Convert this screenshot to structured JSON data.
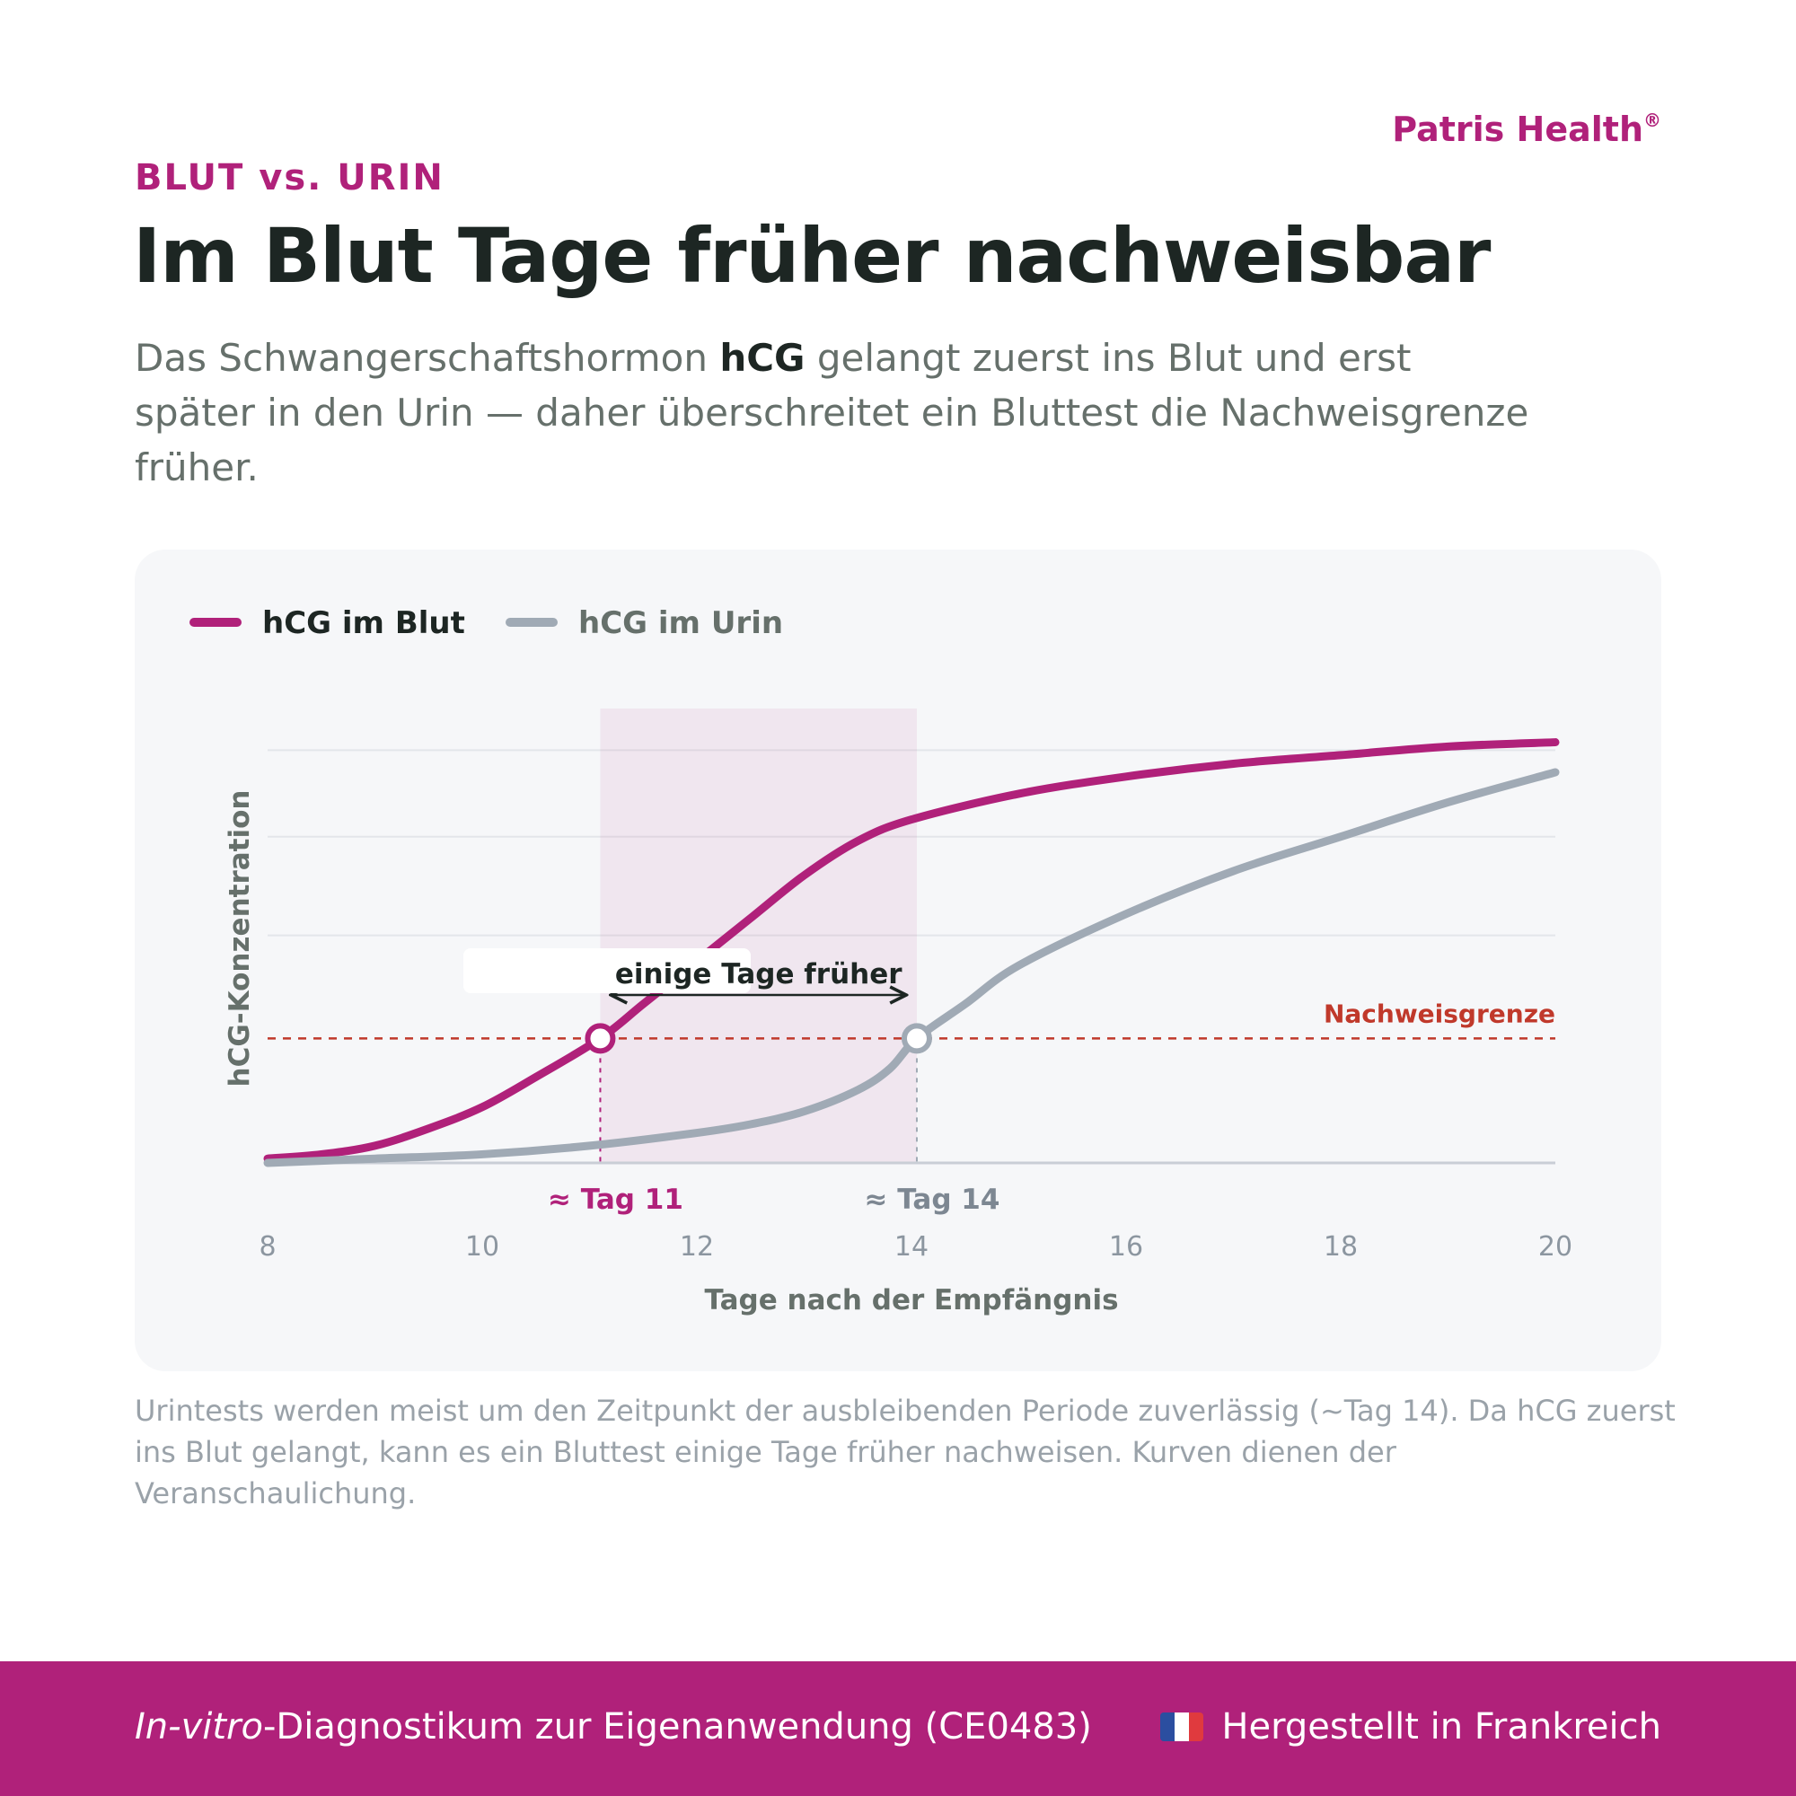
{
  "header": {
    "brand": "Patris Health",
    "brand_mark": "®",
    "eyebrow": "BLUT vs. URIN",
    "title": "Im Blut Tage früher nachweisbar",
    "lead": {
      "before": "Das Schwangerschaftshormon ",
      "bold": "hCG",
      "after": " gelangt zuerst ins Blut und erst später in den Urin — daher überschreitet ein Bluttest die Nachweisgrenze früher."
    }
  },
  "colors": {
    "accent": "#b0217a",
    "urine": "#a0aab5",
    "threshold": "#c0392b",
    "text_dark": "#1d2623",
    "text_muted": "#66706b",
    "tick": "#8c96a0",
    "card_bg": "#f6f7f9"
  },
  "chart_data": {
    "type": "line",
    "title": "",
    "xlabel": "Tage nach der Empfängnis",
    "ylabel": "hCG-Konzentration",
    "xlim": [
      8,
      20
    ],
    "ylim": [
      0,
      1
    ],
    "x_ticks": [
      "8",
      "10",
      "12",
      "14",
      "16",
      "18",
      "20"
    ],
    "y_ticks_shown": false,
    "grid": "horizontal",
    "legend_position": "top-left",
    "series": [
      {
        "name": "hCG im Blut",
        "color": "#b0217a",
        "x": [
          8,
          8.5,
          9,
          9.5,
          10,
          10.5,
          11.1,
          11.5,
          12,
          12.5,
          13,
          13.5,
          14,
          15,
          16,
          17,
          18,
          19,
          20
        ],
        "y": [
          0.01,
          0.02,
          0.04,
          0.08,
          0.13,
          0.2,
          0.29,
          0.37,
          0.47,
          0.57,
          0.67,
          0.75,
          0.8,
          0.86,
          0.9,
          0.93,
          0.95,
          0.97,
          0.98
        ]
      },
      {
        "name": "hCG im Urin",
        "color": "#a0aab5",
        "x": [
          8,
          9,
          10,
          11,
          12,
          12.5,
          13,
          13.5,
          13.8,
          14.05,
          14.5,
          15,
          16,
          17,
          18,
          19,
          20
        ],
        "y": [
          0.0,
          0.01,
          0.02,
          0.04,
          0.07,
          0.09,
          0.12,
          0.17,
          0.22,
          0.29,
          0.37,
          0.46,
          0.58,
          0.68,
          0.76,
          0.84,
          0.91
        ]
      }
    ],
    "threshold": {
      "label": "Nachweisgrenze",
      "y": 0.29
    },
    "markers": [
      {
        "label": "≈ Tag 11",
        "x": 11.1,
        "y": 0.29,
        "series": "hCG im Blut"
      },
      {
        "label": "≈ Tag 14",
        "x": 14.05,
        "y": 0.29,
        "series": "hCG im Urin"
      }
    ],
    "highlight": {
      "x_start": 11.1,
      "x_end": 14.05,
      "label": "einige Tage früher"
    }
  },
  "note": "Urintests werden meist um den Zeitpunkt der ausbleibenden Periode zuverlässig (~Tag 14). Da hCG zuerst ins Blut gelangt, kann es ein Bluttest einige Tage früher nachweisen. Kurven dienen der Veranschaulichung.",
  "footer": {
    "left_italic": "In-vitro",
    "left_rest": "-Diagnostikum zur Eigenanwendung (CE0483)",
    "right": "Hergestellt in Frankreich",
    "flag_icon": "france-flag-icon"
  }
}
